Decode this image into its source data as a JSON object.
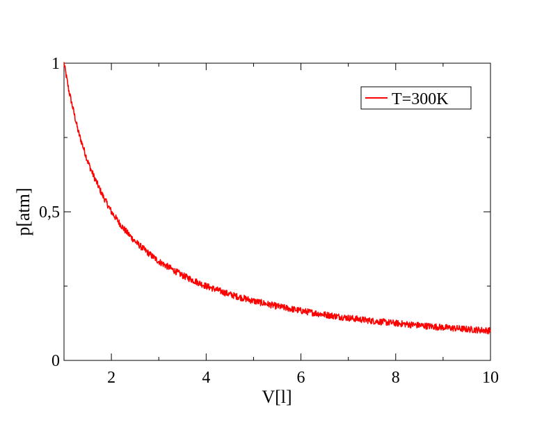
{
  "chart_data": {
    "type": "line",
    "xlabel": "V[l]",
    "ylabel": "p[atm]",
    "xlim": [
      1,
      10
    ],
    "ylim": [
      0,
      1
    ],
    "x_ticks": [
      {
        "value": 2,
        "label": "2"
      },
      {
        "value": 4,
        "label": "4"
      },
      {
        "value": 6,
        "label": "6"
      },
      {
        "value": 8,
        "label": "8"
      },
      {
        "value": 10,
        "label": "10"
      }
    ],
    "x_minor_ticks": [
      1,
      3,
      5,
      7,
      9
    ],
    "y_ticks": [
      {
        "value": 0,
        "label": "0"
      },
      {
        "value": 0.5,
        "label": "0,5"
      },
      {
        "value": 1,
        "label": "1"
      }
    ],
    "y_minor_ticks": [
      0.25,
      0.75
    ],
    "grid": false,
    "legend": {
      "position": "top-right"
    },
    "series": [
      {
        "name": "T=300K",
        "color": "#ff0000",
        "noisy": true,
        "x": [
          1.0,
          1.1,
          1.2,
          1.3,
          1.4,
          1.5,
          1.6,
          1.8,
          2.0,
          2.25,
          2.5,
          2.75,
          3.0,
          3.5,
          4.0,
          4.5,
          5.0,
          5.5,
          6.0,
          6.5,
          7.0,
          7.5,
          8.0,
          8.5,
          9.0,
          9.5,
          10.0
        ],
        "y": [
          1.0,
          0.91,
          0.84,
          0.77,
          0.72,
          0.67,
          0.63,
          0.56,
          0.5,
          0.445,
          0.4,
          0.365,
          0.333,
          0.286,
          0.25,
          0.222,
          0.2,
          0.182,
          0.167,
          0.154,
          0.143,
          0.133,
          0.125,
          0.118,
          0.111,
          0.105,
          0.1
        ]
      }
    ]
  }
}
